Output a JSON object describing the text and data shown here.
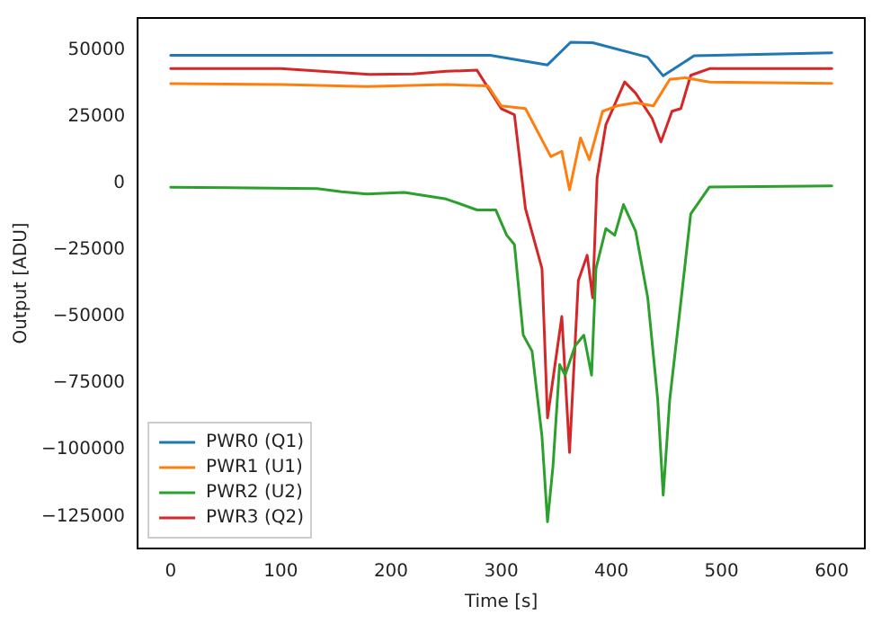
{
  "chart_data": {
    "type": "line",
    "xlabel": "Time [s]",
    "ylabel": "Output [ADU]",
    "xlim": [
      -30,
      630
    ],
    "ylim": [
      -137000,
      62000
    ],
    "xticks": [
      0,
      100,
      200,
      300,
      400,
      500,
      600
    ],
    "yticks": [
      -125000,
      -100000,
      -75000,
      -50000,
      -25000,
      0,
      25000,
      50000
    ],
    "grid": false,
    "legend": "bottom left",
    "marker": "none",
    "line_style": "solid",
    "series": [
      {
        "name": "PWR0 (Q1)",
        "color": "#1f77b4",
        "x": [
          0,
          100,
          200,
          290,
          342,
          363,
          383,
          433,
          447,
          475,
          600
        ],
        "values": [
          48000,
          48000,
          48000,
          48000,
          44400,
          52900,
          52700,
          47300,
          40300,
          47800,
          48900
        ]
      },
      {
        "name": "PWR1 (U1)",
        "color": "#ff7f0e",
        "x": [
          0,
          100,
          178,
          250,
          288,
          300,
          322,
          345,
          355,
          362,
          372,
          380,
          392,
          405,
          422,
          438,
          453,
          467,
          489,
          600
        ],
        "values": [
          37400,
          37000,
          36300,
          37000,
          36500,
          29000,
          28000,
          10000,
          12000,
          -2500,
          17000,
          8800,
          27000,
          29000,
          30200,
          29000,
          39000,
          39600,
          38000,
          37500
        ]
      },
      {
        "name": "PWR2 (U2)",
        "color": "#2ca02c",
        "x": [
          0,
          133,
          155,
          178,
          212,
          250,
          278,
          295,
          305,
          312,
          320,
          328,
          337,
          342,
          347,
          353,
          358,
          367,
          375,
          382,
          386,
          395,
          403,
          411,
          422,
          433,
          442,
          447,
          453,
          461,
          472,
          489,
          600
        ],
        "values": [
          -1500,
          -2000,
          -3200,
          -4000,
          -3400,
          -5900,
          -10000,
          -10000,
          -19500,
          -23000,
          -57000,
          -63000,
          -95000,
          -127000,
          -106000,
          -68000,
          -72000,
          -61000,
          -57000,
          -72000,
          -32000,
          -17000,
          -19500,
          -8000,
          -18000,
          -43000,
          -81000,
          -117000,
          -81000,
          -52000,
          -11500,
          -1400,
          -1000
        ]
      },
      {
        "name": "PWR3 (Q2)",
        "color": "#d62728",
        "x": [
          0,
          100,
          180,
          220,
          250,
          278,
          300,
          312,
          322,
          337,
          342,
          355,
          362,
          370,
          378,
          383,
          387,
          395,
          412,
          422,
          437,
          445,
          455,
          463,
          472,
          489,
          600
        ],
        "values": [
          43000,
          43000,
          40800,
          41000,
          42000,
          42400,
          28000,
          25700,
          -9500,
          -32000,
          -88000,
          -50000,
          -101000,
          -36500,
          -27000,
          -43000,
          2000,
          22000,
          38000,
          33800,
          24300,
          15500,
          27000,
          28000,
          40500,
          43000,
          43000
        ]
      }
    ]
  }
}
